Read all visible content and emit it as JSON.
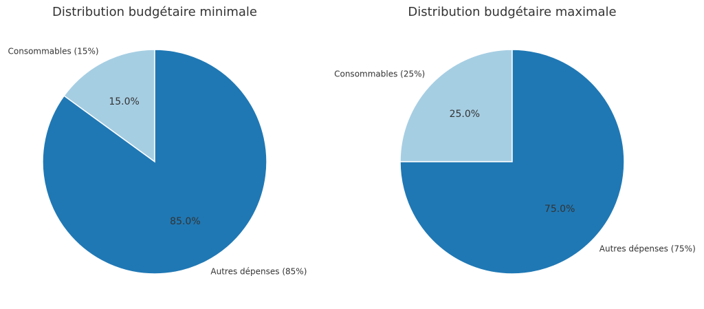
{
  "chart_data": [
    {
      "type": "pie",
      "title": "Distribution budgétaire minimale",
      "categories": [
        "Consommables (15%)",
        "Autres dépenses (85%)"
      ],
      "values": [
        15,
        85
      ],
      "value_labels": [
        "15.0%",
        "85.0%"
      ],
      "colors": [
        "#a6cee3",
        "#1f78b4"
      ]
    },
    {
      "type": "pie",
      "title": "Distribution budgétaire maximale",
      "categories": [
        "Consommables (25%)",
        "Autres dépenses (75%)"
      ],
      "values": [
        25,
        75
      ],
      "value_labels": [
        "25.0%",
        "75.0%"
      ],
      "colors": [
        "#a6cee3",
        "#1f78b4"
      ]
    }
  ]
}
